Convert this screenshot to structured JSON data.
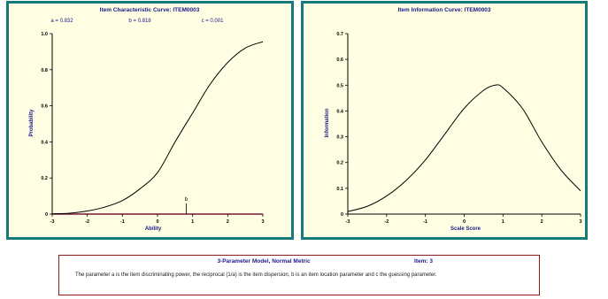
{
  "chart_data": [
    {
      "type": "line",
      "title": "Item Characteristic Curve: ITEM0003",
      "params": {
        "a": "a = 0.832",
        "b": "b = 0.818",
        "c": "c = 0.001"
      },
      "xlabel": "Ability",
      "ylabel": "Probability",
      "xlim": [
        -3,
        3
      ],
      "ylim": [
        0,
        1.0
      ],
      "x_ticks": [
        "-3",
        "-2",
        "-1",
        "0",
        "1",
        "2",
        "3"
      ],
      "y_ticks": [
        "0",
        "0.2",
        "0.4",
        "0.6",
        "0.8",
        "1.0"
      ],
      "marker": {
        "label": "b",
        "x": 0.818
      },
      "series": [
        {
          "x": [
            -3,
            -2.5,
            -2,
            -1.5,
            -1,
            -0.5,
            0,
            0.5,
            1,
            1.5,
            2,
            2.5,
            3
          ],
          "values": [
            0.001,
            0.005,
            0.017,
            0.039,
            0.075,
            0.14,
            0.23,
            0.4,
            0.56,
            0.72,
            0.84,
            0.92,
            0.955
          ]
        }
      ],
      "grid": false,
      "colors": {
        "line": "#000000",
        "baseline": "#7a1a3a",
        "text": "#1a1a8c",
        "frame": "#157a7a",
        "background": "#fffde2"
      }
    },
    {
      "type": "line",
      "title": "Item Information Curve: ITEM0003",
      "xlabel": "Scale Score",
      "ylabel": "Information",
      "xlim": [
        -3,
        3
      ],
      "ylim": [
        0,
        0.7
      ],
      "x_ticks": [
        "-3",
        "-2",
        "-1",
        "0",
        "1",
        "2",
        "3"
      ],
      "y_ticks": [
        "0",
        "0.1",
        "0.2",
        "0.3",
        "0.4",
        "0.5",
        "0.6",
        "0.7"
      ],
      "series": [
        {
          "x": [
            -3,
            -2.5,
            -2,
            -1.5,
            -1,
            -0.5,
            0,
            0.5,
            0.8,
            1,
            1.5,
            2,
            2.5,
            3
          ],
          "values": [
            0.01,
            0.03,
            0.07,
            0.13,
            0.21,
            0.31,
            0.41,
            0.48,
            0.5,
            0.49,
            0.41,
            0.28,
            0.17,
            0.09
          ]
        }
      ],
      "grid": false,
      "colors": {
        "line": "#000000",
        "text": "#1a1a8c",
        "frame": "#157a7a",
        "background": "#fffde2"
      }
    }
  ],
  "note": {
    "title": "3-Parameter Model, Normal Metric",
    "item": "Item: 3",
    "text": "The parameter a is the item discriminating power, the reciprocal (1/a) is the item dispersion, b is an item location parameter and c the guessing parameter."
  }
}
